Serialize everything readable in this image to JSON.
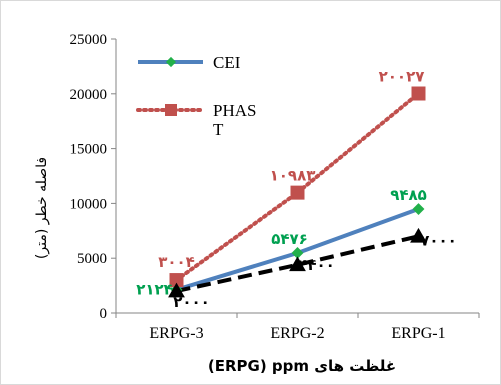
{
  "chart_data": {
    "type": "line",
    "categories": [
      "ERPG-3",
      "ERPG-2",
      "ERPG-1"
    ],
    "ylim": [
      0,
      25000
    ],
    "yticks": [
      "0",
      "5000",
      "10000",
      "15000",
      "20000",
      "25000"
    ],
    "ylabel": "فاصله خطر (متر)",
    "xlabel": "غلظت های ERPG) ppm)",
    "grid": false,
    "legend_position": "top-left",
    "series": [
      {
        "name": "CEI",
        "values": [
          2124,
          5476,
          9485
        ],
        "labels": [
          "۲۱۲۴",
          "۵۴۷۶",
          "۹۴۸۵"
        ],
        "color": "#4f81bd",
        "label_color": "#00a050",
        "marker": "diamond",
        "marker_color": "#22b04a",
        "line_style": "solid"
      },
      {
        "name": "PHAST",
        "legend_lines": [
          "PHAS",
          "T"
        ],
        "values": [
          3004,
          10983,
          20027
        ],
        "labels": [
          "۳۰۰۴",
          "۱۰۹۸۳",
          "۲۰۰۲۷"
        ],
        "color": "#c0504d",
        "label_color": "#c0504d",
        "marker": "square",
        "marker_color": "#c0504d",
        "line_style": "dotted"
      },
      {
        "values": [
          2000,
          4400,
          7000
        ],
        "labels": [
          "۲۰۰۰",
          "۴۴۰۰",
          "۷۰۰۰"
        ],
        "color": "#000000",
        "label_color": "#000000",
        "marker": "triangle",
        "marker_color": "#000000",
        "line_style": "dashed"
      }
    ]
  }
}
